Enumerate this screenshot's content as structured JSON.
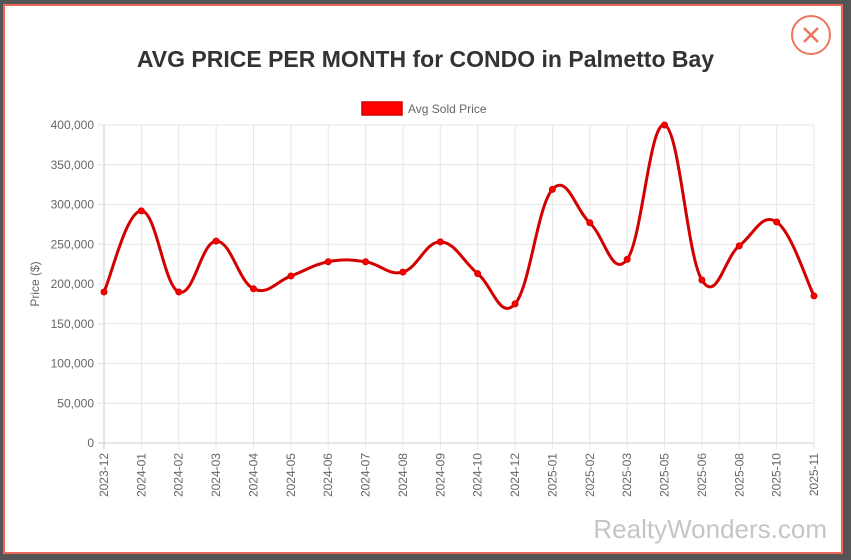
{
  "modal": {
    "close_icon": "close-x-icon"
  },
  "chart_data": {
    "type": "line",
    "title": "AVG PRICE PER MONTH for CONDO in Palmetto Bay",
    "ylabel": "Price ($)",
    "xlabel": "",
    "ylim": [
      0,
      400000
    ],
    "yticks": [
      0,
      50000,
      100000,
      150000,
      200000,
      250000,
      300000,
      350000,
      400000
    ],
    "ytick_labels": [
      "0",
      "50,000",
      "100,000",
      "150,000",
      "200,000",
      "250,000",
      "300,000",
      "350,000",
      "400,000"
    ],
    "grid": true,
    "legend_position": "top",
    "categories": [
      "2023-12",
      "2024-01",
      "2024-02",
      "2024-03",
      "2024-04",
      "2024-05",
      "2024-06",
      "2024-07",
      "2024-08",
      "2024-09",
      "2024-10",
      "2024-12",
      "2025-01",
      "2025-02",
      "2025-03",
      "2025-05",
      "2025-06",
      "2025-08",
      "2025-10",
      "2025-11"
    ],
    "series": [
      {
        "name": "Avg Sold Price",
        "color": "#d40000",
        "values": [
          190000,
          292000,
          190000,
          254000,
          194000,
          210000,
          228000,
          228000,
          215000,
          253000,
          213000,
          175000,
          319000,
          277000,
          231000,
          400000,
          205000,
          248000,
          278000,
          185000
        ]
      }
    ]
  },
  "watermark": "RealtyWonders.com"
}
